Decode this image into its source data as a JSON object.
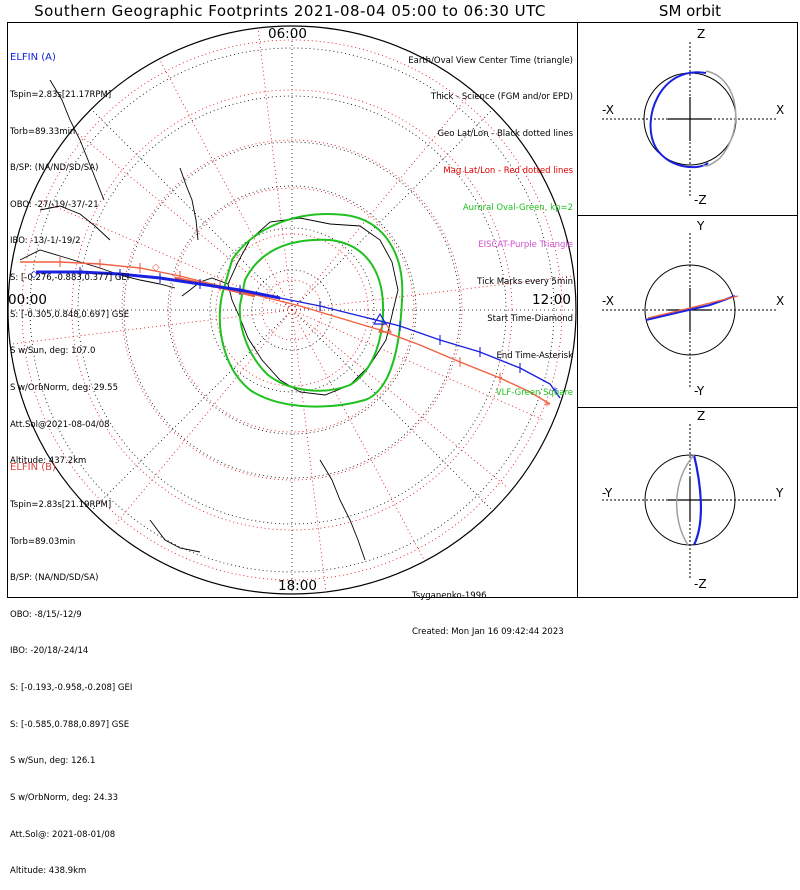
{
  "title": "Southern Geographic Footprints 2021-08-04 05:00 to 06:30 UTC",
  "sm_title": "SM orbit",
  "clock_labels": {
    "top": "06:00",
    "left": "00:00",
    "right": "12:00",
    "bottom": "18:00"
  },
  "elfin_a": {
    "name": "ELFIN (A)",
    "lines": [
      "Tspin=2.83s[21.17RPM]",
      "Torb=89.33min",
      "B/SP: (NA/ND/SD/SA)",
      "OBO: -27/-19/-37/-21",
      "IBO: -13/-1/-19/2",
      "S: [-0.276,-0.883,0.377] GEI",
      "S: [-0.305,0.848,0.697] GSE",
      "S w/Sun, deg: 107.0",
      "S w/OrbNorm, deg: 29.55",
      "Att.Sol@2021-08-04/08",
      "Altitude: 437.2km"
    ],
    "color": "#1a20e0"
  },
  "elfin_b": {
    "name": "ELFIN (B)",
    "lines": [
      "Tspin=2.83s[21.19RPM]",
      "Torb=89.03min",
      "B/SP: (NA/ND/SD/SA)",
      "OBO: -8/15/-12/9",
      "IBO: -20/18/-24/14",
      "S: [-0.193,-0.958,-0.208] GEI",
      "S: [-0.585,0.788,0.897] GSE",
      "S w/Sun, deg: 126.1",
      "S w/OrbNorm, deg: 24.33",
      "Att.Sol@: 2021-08-01/08",
      "Altitude: 438.9km"
    ],
    "color": "#f06040"
  },
  "legend": [
    {
      "text": "Earth/Oval View Center Time (triangle)",
      "color": "#000000"
    },
    {
      "text": "Thick - Science (FGM and/or EPD)",
      "color": "#000000"
    },
    {
      "text": "Geo Lat/Lon - Black dotted lines",
      "color": "#000000"
    },
    {
      "text": "Mag Lat/Lon - Red dotted lines",
      "color": "#e00000"
    },
    {
      "text": "Auroral Oval-Green, kp=2",
      "color": "#20c020"
    },
    {
      "text": "EISCAT-Purple Triangle",
      "color": "#d050d0"
    },
    {
      "text": "Tick Marks every 5min",
      "color": "#000000"
    },
    {
      "text": "Start Time-Diamond",
      "color": "#000000"
    },
    {
      "text": "End Time-Asterisk",
      "color": "#000000"
    },
    {
      "text": "VLF-Green Square",
      "color": "#20c020"
    }
  ],
  "footer": {
    "author": "Tsyganenko-1996",
    "created": "Created: Mon Jan 16 09:42:44 2023"
  },
  "sm_panels": [
    {
      "top": "Z",
      "bottom": "-Z",
      "left": "-X",
      "right": "X"
    },
    {
      "top": "Y",
      "bottom": "-Y",
      "left": "-X",
      "right": "X"
    },
    {
      "top": "Z",
      "bottom": "-Z",
      "left": "-Y",
      "right": "Y"
    }
  ]
}
